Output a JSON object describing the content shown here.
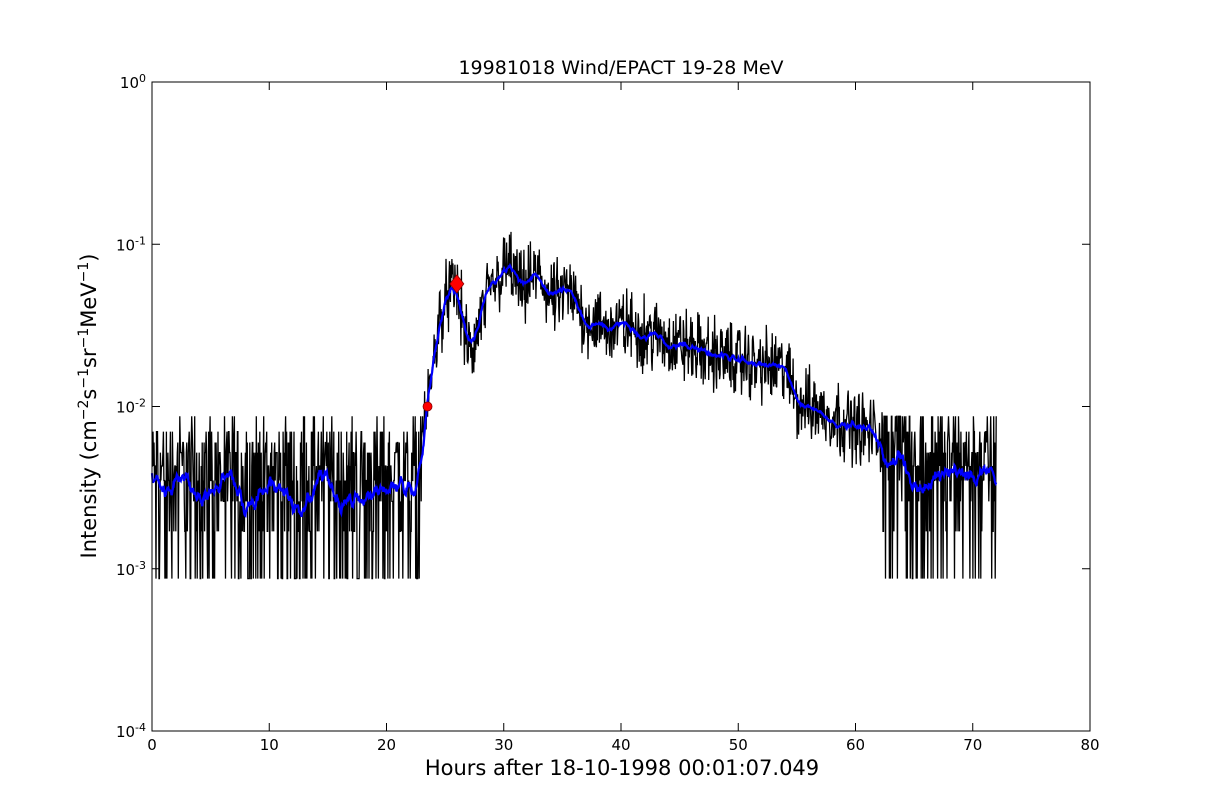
{
  "chart_data": {
    "type": "line",
    "title": "19981018 Wind/EPACT 19-28 MeV",
    "xlabel": "Hours after 18-10-1998 00:01:07.049",
    "ylabel": {
      "prefix": "Intensity (cm",
      "sup1": "−2",
      "mid1": "s",
      "sup2": "−1",
      "mid2": "sr",
      "sup3": "−1",
      "mid3": "MeV",
      "sup4": "−1",
      "suffix": ")"
    },
    "xlim": [
      0,
      80
    ],
    "ylim": [
      0.0001,
      1
    ],
    "yscale": "log",
    "grid": false,
    "x_ticks": [
      0,
      10,
      20,
      30,
      40,
      50,
      60,
      70,
      80
    ],
    "x_tick_labels": [
      "0",
      "10",
      "20",
      "30",
      "40",
      "50",
      "60",
      "70",
      "80"
    ],
    "y_ticks": [
      0.0001,
      0.001,
      0.01,
      0.1,
      1
    ],
    "y_tick_labels": [
      {
        "base": "10",
        "exp": "-4"
      },
      {
        "base": "10",
        "exp": "-3"
      },
      {
        "base": "10",
        "exp": "-2"
      },
      {
        "base": "10",
        "exp": "-1"
      },
      {
        "base": "10",
        "exp": "0"
      }
    ],
    "series": [
      {
        "role": "raw-intensity",
        "color": "#000000",
        "x_range": [
          0,
          72
        ],
        "profile": {
          "x": [
            0,
            22.7,
            23.5,
            24.5,
            25.3,
            26.0,
            26.8,
            27.3,
            28.0,
            29.0,
            30.5,
            31.5,
            32.3,
            33.0,
            34.0,
            35.5,
            37.0,
            38.5,
            40.0,
            45.0,
            50.0,
            54.0,
            55.0,
            60.0,
            65.0,
            68.0,
            72.0
          ],
          "y": [
            0.004,
            0.004,
            0.01,
            0.035,
            0.05,
            0.055,
            0.025,
            0.02,
            0.035,
            0.055,
            0.075,
            0.05,
            0.06,
            0.065,
            0.045,
            0.05,
            0.035,
            0.03,
            0.032,
            0.024,
            0.019,
            0.017,
            0.011,
            0.0075,
            0.0055,
            0.0045,
            0.0045
          ]
        }
      },
      {
        "role": "smoothed-intensity",
        "color": "#0000ff"
      }
    ],
    "markers": [
      {
        "x": 23.5,
        "y": 0.01,
        "shape": "circle",
        "color": "#ff0000"
      },
      {
        "x": 26.0,
        "y": 0.057,
        "shape": "diamond",
        "color": "#ff0000"
      }
    ]
  }
}
